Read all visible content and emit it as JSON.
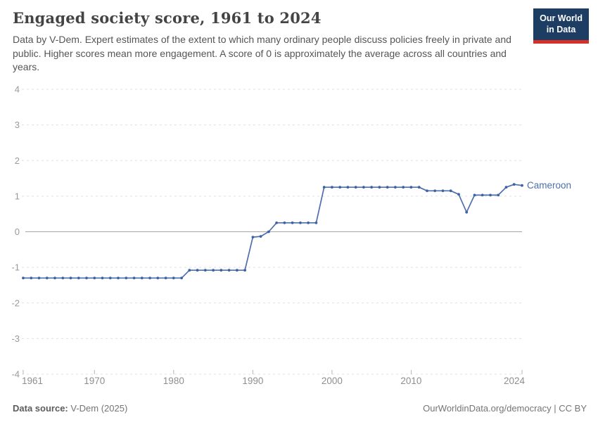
{
  "header": {
    "title": "Engaged society score, 1961 to 2024",
    "subtitle": "Data by V-Dem. Expert estimates of the extent to which many ordinary people discuss policies freely in private and public. Higher scores mean more engagement. A score of 0 is approximately the average across all countries and years."
  },
  "logo": {
    "line1": "Our World",
    "line2": "in Data"
  },
  "chart_data": {
    "type": "line",
    "title": "Engaged society score, 1961 to 2024",
    "xlabel": "",
    "ylabel": "",
    "xlim": [
      1961,
      2024
    ],
    "ylim": [
      -4,
      4
    ],
    "yticks": [
      4,
      3,
      2,
      1,
      0,
      -1,
      -2,
      -3,
      -4
    ],
    "xticks": [
      1961,
      1970,
      1980,
      1990,
      2000,
      2010,
      2024
    ],
    "grid": "horizontal-dashed, solid zero line",
    "legend": "entity label at end of line",
    "x": [
      1961,
      1962,
      1963,
      1964,
      1965,
      1966,
      1967,
      1968,
      1969,
      1970,
      1971,
      1972,
      1973,
      1974,
      1975,
      1976,
      1977,
      1978,
      1979,
      1980,
      1981,
      1982,
      1983,
      1984,
      1985,
      1986,
      1987,
      1988,
      1989,
      1990,
      1991,
      1992,
      1993,
      1994,
      1995,
      1996,
      1997,
      1998,
      1999,
      2000,
      2001,
      2002,
      2003,
      2004,
      2005,
      2006,
      2007,
      2008,
      2009,
      2010,
      2011,
      2012,
      2013,
      2014,
      2015,
      2016,
      2017,
      2018,
      2019,
      2020,
      2021,
      2022,
      2023,
      2024
    ],
    "series": [
      {
        "name": "Cameroon",
        "color": "#4d6fab",
        "marker_color": "#3d63a6",
        "values": [
          -1.3,
          -1.3,
          -1.3,
          -1.3,
          -1.3,
          -1.3,
          -1.3,
          -1.3,
          -1.3,
          -1.3,
          -1.3,
          -1.3,
          -1.3,
          -1.3,
          -1.3,
          -1.3,
          -1.3,
          -1.3,
          -1.3,
          -1.3,
          -1.3,
          -1.08,
          -1.08,
          -1.08,
          -1.08,
          -1.08,
          -1.08,
          -1.08,
          -1.08,
          -0.15,
          -0.13,
          0,
          0.25,
          0.25,
          0.25,
          0.25,
          0.25,
          0.25,
          1.25,
          1.25,
          1.25,
          1.25,
          1.25,
          1.25,
          1.25,
          1.25,
          1.25,
          1.25,
          1.25,
          1.25,
          1.25,
          1.15,
          1.15,
          1.15,
          1.15,
          1.05,
          0.55,
          1.03,
          1.03,
          1.03,
          1.03,
          1.25,
          1.33,
          1.3
        ]
      }
    ]
  },
  "colors": {
    "grid": "#e0e0e0",
    "zero_line": "#a6a6a6",
    "y_tick_label": "#9a9a9a",
    "x_tick_label": "#8f8f8f",
    "tick_mark": "#b5b5b5",
    "logo_bg": "#1d3d63",
    "logo_bar": "#d5312a"
  },
  "footer": {
    "source_label": "Data source:",
    "source_value": " V-Dem (2025)",
    "credit": "OurWorldinData.org/democracy | CC BY"
  }
}
